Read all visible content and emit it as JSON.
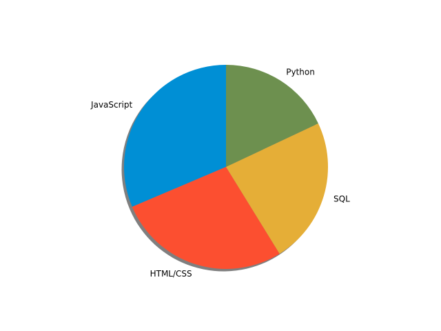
{
  "chart_data": {
    "type": "pie",
    "title": "",
    "shadow": true,
    "start_angle_deg": 90,
    "direction": "counterclockwise",
    "slices": [
      {
        "label": "JavaScript",
        "value": 31.4,
        "color": "#008fd5"
      },
      {
        "label": "HTML/CSS",
        "value": 27.4,
        "color": "#fc4f30"
      },
      {
        "label": "SQL",
        "value": 23.2,
        "color": "#e5ae37"
      },
      {
        "label": "Python",
        "value": 18.0,
        "color": "#6d904f"
      }
    ]
  }
}
